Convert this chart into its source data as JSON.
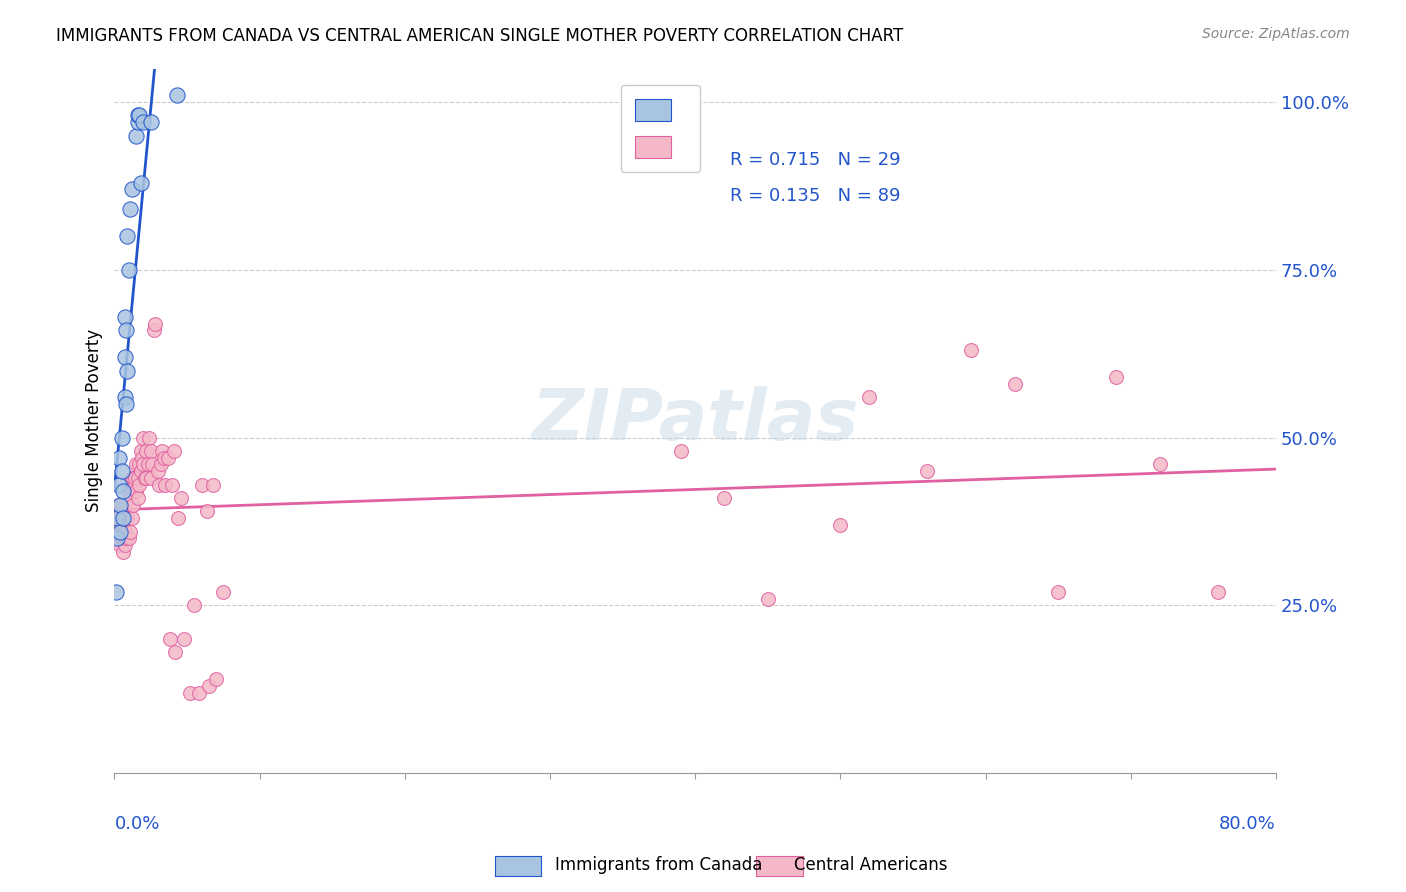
{
  "title": "IMMIGRANTS FROM CANADA VS CENTRAL AMERICAN SINGLE MOTHER POVERTY CORRELATION CHART",
  "source": "Source: ZipAtlas.com",
  "ylabel": "Single Mother Poverty",
  "ytick_labels": [
    "25.0%",
    "50.0%",
    "75.0%",
    "100.0%"
  ],
  "ytick_values": [
    0.25,
    0.5,
    0.75,
    1.0
  ],
  "R_canada": 0.715,
  "N_canada": 29,
  "R_central": 0.135,
  "N_central": 89,
  "color_canada": "#a8c4e0",
  "color_central": "#f4b8c8",
  "color_canada_line": "#2255cc",
  "color_central_line": "#e060a0",
  "watermark": "ZIPatlas",
  "canada_x": [
    0.001,
    0.002,
    0.002,
    0.003,
    0.003,
    0.004,
    0.004,
    0.005,
    0.005,
    0.006,
    0.006,
    0.007,
    0.007,
    0.007,
    0.008,
    0.008,
    0.009,
    0.009,
    0.01,
    0.011,
    0.012,
    0.015,
    0.016,
    0.016,
    0.017,
    0.018,
    0.02,
    0.025,
    0.043
  ],
  "canada_y": [
    0.27,
    0.35,
    0.38,
    0.43,
    0.47,
    0.36,
    0.4,
    0.45,
    0.5,
    0.38,
    0.42,
    0.56,
    0.62,
    0.68,
    0.55,
    0.66,
    0.6,
    0.8,
    0.75,
    0.84,
    0.87,
    0.95,
    0.97,
    0.98,
    0.98,
    0.88,
    0.97,
    0.97,
    1.01
  ],
  "central_x": [
    0.001,
    0.001,
    0.002,
    0.002,
    0.002,
    0.003,
    0.003,
    0.003,
    0.003,
    0.004,
    0.004,
    0.004,
    0.005,
    0.005,
    0.005,
    0.006,
    0.006,
    0.006,
    0.007,
    0.007,
    0.008,
    0.008,
    0.009,
    0.01,
    0.01,
    0.011,
    0.011,
    0.012,
    0.012,
    0.013,
    0.013,
    0.014,
    0.014,
    0.015,
    0.015,
    0.016,
    0.016,
    0.017,
    0.017,
    0.018,
    0.018,
    0.019,
    0.02,
    0.02,
    0.021,
    0.022,
    0.022,
    0.023,
    0.024,
    0.025,
    0.025,
    0.026,
    0.027,
    0.028,
    0.03,
    0.031,
    0.032,
    0.033,
    0.034,
    0.035,
    0.037,
    0.038,
    0.04,
    0.041,
    0.042,
    0.044,
    0.046,
    0.048,
    0.052,
    0.055,
    0.058,
    0.06,
    0.064,
    0.065,
    0.068,
    0.07,
    0.075,
    0.39,
    0.42,
    0.45,
    0.5,
    0.52,
    0.56,
    0.59,
    0.62,
    0.65,
    0.69,
    0.72,
    0.76
  ],
  "central_y": [
    0.37,
    0.38,
    0.36,
    0.37,
    0.39,
    0.35,
    0.36,
    0.38,
    0.4,
    0.34,
    0.36,
    0.38,
    0.35,
    0.37,
    0.4,
    0.33,
    0.35,
    0.37,
    0.34,
    0.36,
    0.35,
    0.38,
    0.38,
    0.35,
    0.42,
    0.36,
    0.41,
    0.38,
    0.44,
    0.4,
    0.44,
    0.43,
    0.44,
    0.42,
    0.46,
    0.41,
    0.44,
    0.43,
    0.46,
    0.45,
    0.48,
    0.47,
    0.46,
    0.5,
    0.44,
    0.48,
    0.44,
    0.46,
    0.5,
    0.44,
    0.48,
    0.46,
    0.66,
    0.67,
    0.45,
    0.43,
    0.46,
    0.48,
    0.47,
    0.43,
    0.47,
    0.2,
    0.43,
    0.48,
    0.18,
    0.38,
    0.41,
    0.2,
    0.12,
    0.25,
    0.12,
    0.43,
    0.39,
    0.13,
    0.43,
    0.14,
    0.27,
    0.48,
    0.41,
    0.26,
    0.37,
    0.56,
    0.45,
    0.63,
    0.58,
    0.27,
    0.59,
    0.46,
    0.27
  ],
  "xmin": 0.0,
  "xmax": 0.8,
  "ymin": 0.0,
  "ymax": 1.05
}
